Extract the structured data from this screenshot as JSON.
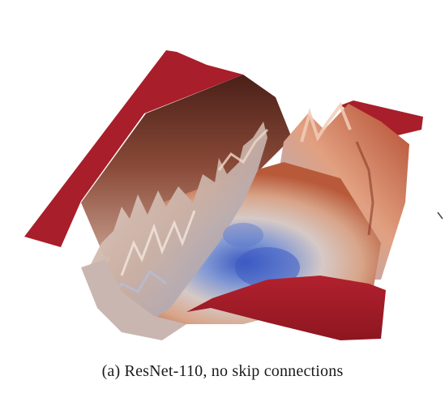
{
  "figure": {
    "caption": "(a) ResNet-110, no skip connections",
    "colors": {
      "edge_red": "#a81e2a",
      "edge_red_dark": "#8d1620",
      "valley_blue": "#3f5fbf",
      "mid_tan": "#d9b8a4",
      "peak_orange": "#c96a45",
      "shadow_brown": "#5a2a20"
    }
  }
}
